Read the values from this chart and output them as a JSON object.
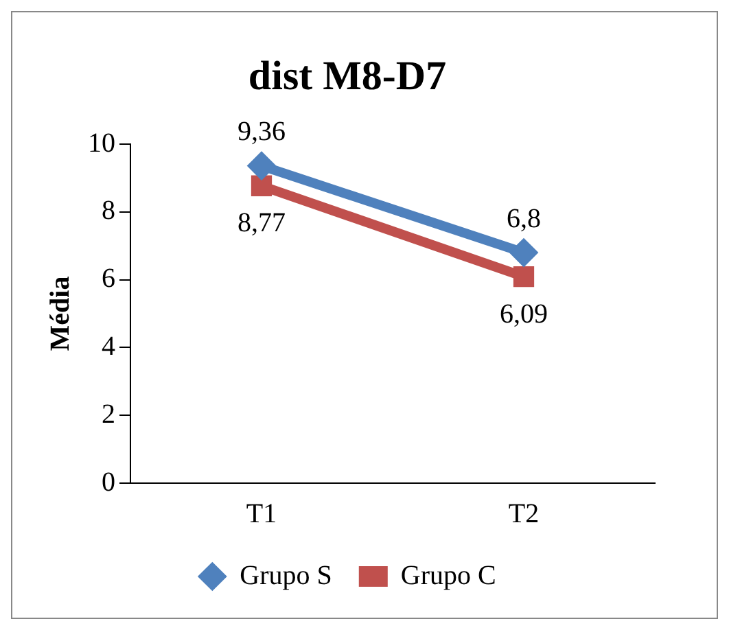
{
  "chart_data": {
    "type": "line",
    "title": "dist M8-D7",
    "ylabel": "Média",
    "categories": [
      "T1",
      "T2"
    ],
    "series": [
      {
        "name": "Grupo S",
        "color": "#4f81bd",
        "marker": "diamond",
        "values": [
          9.36,
          6.8
        ],
        "value_labels": [
          "9,36",
          "6,8"
        ]
      },
      {
        "name": "Grupo C",
        "color": "#c0504d",
        "marker": "square",
        "values": [
          8.77,
          6.09
        ],
        "value_labels": [
          "8,77",
          "6,09"
        ]
      }
    ],
    "ylim": [
      0,
      10
    ],
    "yticks": [
      0,
      2,
      4,
      6,
      8,
      10
    ],
    "grid": false,
    "legend": "bottom"
  }
}
